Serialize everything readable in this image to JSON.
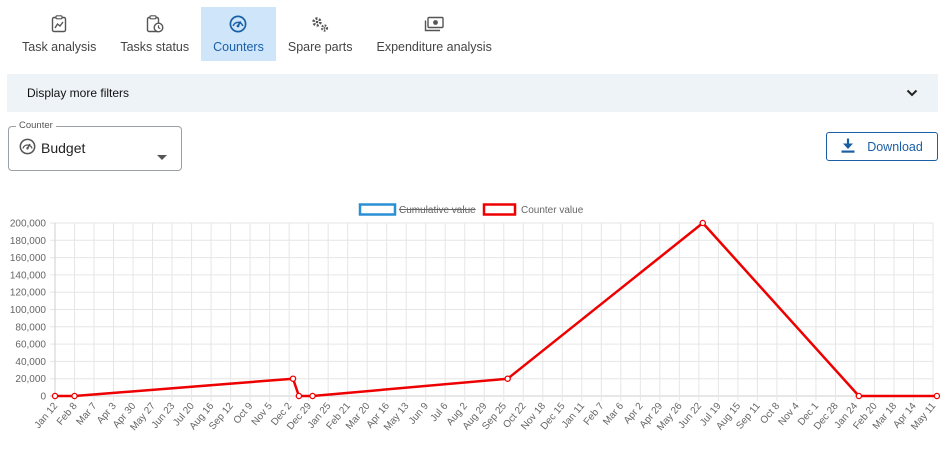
{
  "tabs": [
    {
      "label": "Task analysis",
      "icon": "chart-clipboard-icon",
      "active": false
    },
    {
      "label": "Tasks status",
      "icon": "clipboard-clock-icon",
      "active": false
    },
    {
      "label": "Counters",
      "icon": "gauge-icon",
      "active": true
    },
    {
      "label": "Spare parts",
      "icon": "gears-icon",
      "active": false
    },
    {
      "label": "Expenditure analysis",
      "icon": "money-icon",
      "active": false
    }
  ],
  "filters": {
    "label": "Display more filters",
    "icon": "chevron-down-icon"
  },
  "counter_select": {
    "label": "Counter",
    "value": "Budget",
    "icon": "gauge-icon"
  },
  "download": {
    "label": "Download",
    "icon": "download-icon"
  },
  "colors": {
    "accent": "#1a5fa6",
    "active_tab_bg": "#cfe6fa",
    "series_cumulative": "#2a8fd4",
    "series_counter": "#ee0000"
  },
  "chart_data": {
    "type": "line",
    "x_ticks": [
      "Jan 12",
      "Feb 8",
      "Mar 7",
      "Apr 3",
      "Apr 30",
      "May 27",
      "Jun 23",
      "Jul 20",
      "Aug 16",
      "Sep 12",
      "Oct 9",
      "Nov 5",
      "Dec 2",
      "Dec 29",
      "Jan 25",
      "Feb 21",
      "Mar 20",
      "Apr 16",
      "May 13",
      "Jun 9",
      "Jul 6",
      "Aug 2",
      "Aug 29",
      "Sep 25",
      "Oct 22",
      "Nov 18",
      "Dec 15",
      "Jan 11",
      "Feb 7",
      "Mar 6",
      "Apr 2",
      "Apr 29",
      "May 26",
      "Jun 22",
      "Jul 19",
      "Aug 15",
      "Sep 11",
      "Oct 8",
      "Nov 4",
      "Dec 1",
      "Dec 28",
      "Jan 24",
      "Feb 20",
      "Mar 18",
      "Apr 14",
      "May 11"
    ],
    "y_ticks": [
      "0",
      "20,000",
      "40,000",
      "60,000",
      "80,000",
      "100,000",
      "120,000",
      "140,000",
      "160,000",
      "180,000",
      "200,000"
    ],
    "ylim": [
      0,
      200000
    ],
    "grid": true,
    "legend_position": "top",
    "series": [
      {
        "name": "Cumulative value",
        "hidden": true,
        "points": []
      },
      {
        "name": "Counter value",
        "hidden": false,
        "points": [
          {
            "x": 0,
            "y": 0
          },
          {
            "x": 1,
            "y": 0
          },
          {
            "x": 12.2,
            "y": 20000
          },
          {
            "x": 12.5,
            "y": 0
          },
          {
            "x": 13.2,
            "y": 0
          },
          {
            "x": 23.2,
            "y": 20000
          },
          {
            "x": 33.2,
            "y": 200000
          },
          {
            "x": 41.2,
            "y": 0
          },
          {
            "x": 45.2,
            "y": 0
          }
        ]
      }
    ]
  }
}
